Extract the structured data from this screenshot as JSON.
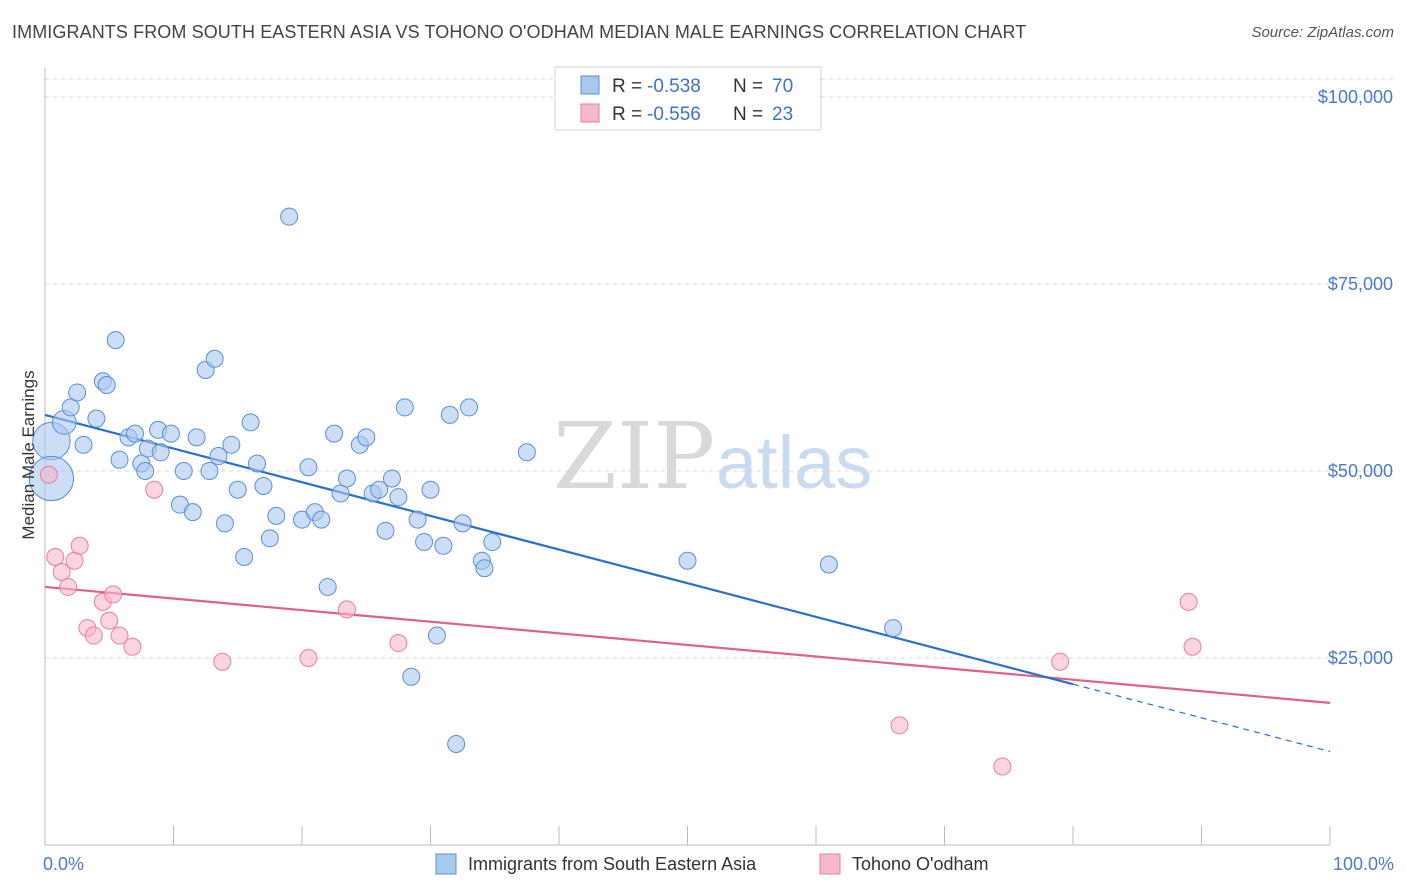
{
  "title": "IMMIGRANTS FROM SOUTH EASTERN ASIA VS TOHONO O'ODHAM MEDIAN MALE EARNINGS CORRELATION CHART",
  "source": "Source: ZipAtlas.com",
  "watermark": {
    "zip": "ZIP",
    "atlas": "atlas"
  },
  "colors": {
    "blue_fill": "#a8c8ee",
    "blue_stroke": "#5b8fd6",
    "blue_line": "#2a6fd0",
    "pink_fill": "#f6b8cb",
    "pink_stroke": "#e77fa0",
    "pink_line": "#e0608a",
    "tick_text": "#4a7bc8",
    "grid": "#d8d8d8"
  },
  "chart_data": {
    "type": "scatter",
    "ylabel": "Median Male Earnings",
    "xlim": [
      0,
      100
    ],
    "ylim": [
      0,
      105000
    ],
    "x_ticks": [
      {
        "value": 0,
        "label": "0.0%"
      },
      {
        "value": 100,
        "label": "100.0%"
      }
    ],
    "y_ticks": [
      {
        "value": 25000,
        "label": "$25,000"
      },
      {
        "value": 50000,
        "label": "$50,000"
      },
      {
        "value": 75000,
        "label": "$75,000"
      },
      {
        "value": 100000,
        "label": "$100,000"
      }
    ],
    "legend": {
      "placement": "top-center",
      "entries": [
        {
          "r_label": "R =",
          "r_value": "-0.538",
          "n_label": "N =",
          "n_value": "70"
        },
        {
          "r_label": "R =",
          "r_value": "-0.556",
          "n_label": "N =",
          "n_value": "23"
        }
      ]
    },
    "series": [
      {
        "name": "Immigrants from South Eastern Asia",
        "color": "#a8c8ee",
        "points": [
          [
            0.5,
            54000,
            2.2
          ],
          [
            0.5,
            49000,
            2.6
          ],
          [
            1.5,
            56500,
            1.4
          ],
          [
            2,
            58500,
            1
          ],
          [
            2.5,
            60500,
            1
          ],
          [
            3,
            53500,
            1
          ],
          [
            4,
            57000,
            1
          ],
          [
            4.5,
            62000,
            1
          ],
          [
            4.8,
            61500,
            1
          ],
          [
            5.5,
            67500,
            1
          ],
          [
            5.8,
            51500,
            1
          ],
          [
            6.5,
            54500,
            1
          ],
          [
            7,
            55000,
            1
          ],
          [
            7.5,
            51000,
            1
          ],
          [
            7.8,
            50000,
            1
          ],
          [
            8,
            53000,
            1
          ],
          [
            8.8,
            55500,
            1
          ],
          [
            9,
            52500,
            1
          ],
          [
            9.8,
            55000,
            1
          ],
          [
            10.5,
            45500,
            1
          ],
          [
            10.8,
            50000,
            1
          ],
          [
            11.5,
            44500,
            1
          ],
          [
            11.8,
            54500,
            1
          ],
          [
            12.5,
            63500,
            1
          ],
          [
            12.8,
            50000,
            1
          ],
          [
            13.2,
            65000,
            1
          ],
          [
            13.5,
            52000,
            1
          ],
          [
            14,
            43000,
            1
          ],
          [
            14.5,
            53500,
            1
          ],
          [
            15,
            47500,
            1
          ],
          [
            15.5,
            38500,
            1
          ],
          [
            16,
            56500,
            1
          ],
          [
            16.5,
            51000,
            1
          ],
          [
            17,
            48000,
            1
          ],
          [
            17.5,
            41000,
            1
          ],
          [
            18,
            44000,
            1
          ],
          [
            19,
            84000,
            1
          ],
          [
            20,
            43500,
            1
          ],
          [
            20.5,
            50500,
            1
          ],
          [
            21,
            44500,
            1
          ],
          [
            21.5,
            43500,
            1
          ],
          [
            22,
            34500,
            1
          ],
          [
            22.5,
            55000,
            1
          ],
          [
            23,
            47000,
            1
          ],
          [
            23.5,
            49000,
            1
          ],
          [
            24.5,
            53500,
            1
          ],
          [
            25,
            54500,
            1
          ],
          [
            25.5,
            47000,
            1
          ],
          [
            26,
            47500,
            1
          ],
          [
            26.5,
            42000,
            1
          ],
          [
            27,
            49000,
            1
          ],
          [
            27.5,
            46500,
            1
          ],
          [
            28,
            58500,
            1
          ],
          [
            28.5,
            22500,
            1
          ],
          [
            29,
            43500,
            1
          ],
          [
            29.5,
            40500,
            1
          ],
          [
            30,
            47500,
            1
          ],
          [
            30.5,
            28000,
            1
          ],
          [
            31,
            40000,
            1
          ],
          [
            31.5,
            57500,
            1
          ],
          [
            32,
            13500,
            1
          ],
          [
            32.5,
            43000,
            1
          ],
          [
            33,
            58500,
            1
          ],
          [
            34,
            38000,
            1
          ],
          [
            34.2,
            37000,
            1
          ],
          [
            34.8,
            40500,
            1
          ],
          [
            37.5,
            52500,
            1
          ],
          [
            50,
            38000,
            1
          ],
          [
            66,
            29000,
            1
          ],
          [
            61,
            37500,
            1
          ]
        ],
        "trend": {
          "x0": 0,
          "y0": 57500,
          "x1": 80,
          "y1": 21500,
          "dash_to_x": 100,
          "dash_to_y": 12500
        }
      },
      {
        "name": "Tohono O'odham",
        "color": "#f6b8cb",
        "points": [
          [
            0.3,
            49500,
            1
          ],
          [
            0.8,
            38500,
            1
          ],
          [
            1.3,
            36500,
            1
          ],
          [
            1.8,
            34500,
            1
          ],
          [
            2.3,
            38000,
            1
          ],
          [
            2.7,
            40000,
            1
          ],
          [
            3.3,
            29000,
            1
          ],
          [
            3.8,
            28000,
            1
          ],
          [
            4.5,
            32500,
            1
          ],
          [
            5,
            30000,
            1
          ],
          [
            5.3,
            33500,
            1
          ],
          [
            5.8,
            28000,
            1
          ],
          [
            6.8,
            26500,
            1
          ],
          [
            8.5,
            47500,
            1
          ],
          [
            13.8,
            24500,
            1
          ],
          [
            20.5,
            25000,
            1
          ],
          [
            23.5,
            31500,
            1
          ],
          [
            27.5,
            27000,
            1
          ],
          [
            66.5,
            16000,
            1
          ],
          [
            74.5,
            10500,
            1
          ],
          [
            79,
            24500,
            1
          ],
          [
            89,
            32500,
            1
          ],
          [
            89.3,
            26500,
            1
          ]
        ],
        "trend": {
          "x0": 0,
          "y0": 34500,
          "x1": 100,
          "y1": 19000
        }
      }
    ]
  }
}
